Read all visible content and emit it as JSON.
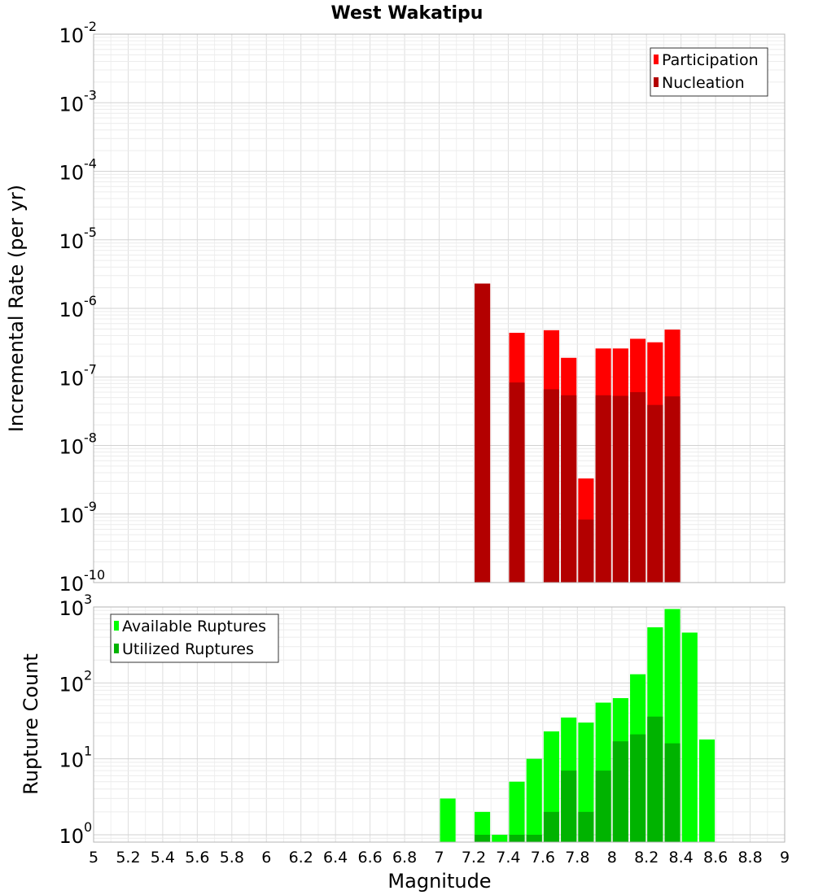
{
  "chart_data": [
    {
      "type": "bar",
      "title": "West Wakatipu",
      "xlabel": "Magnitude",
      "ylabel": "Incremental Rate (per yr)",
      "yscale": "log",
      "ylim": [
        1e-10,
        0.01
      ],
      "xlim": [
        5,
        9
      ],
      "bar_width": 0.09,
      "yticks": [
        {
          "base": "10",
          "exp": "-10"
        },
        {
          "base": "10",
          "exp": "-9"
        },
        {
          "base": "10",
          "exp": "-8"
        },
        {
          "base": "10",
          "exp": "-7"
        },
        {
          "base": "10",
          "exp": "-6"
        },
        {
          "base": "10",
          "exp": "-5"
        },
        {
          "base": "10",
          "exp": "-4"
        },
        {
          "base": "10",
          "exp": "-3"
        },
        {
          "base": "10",
          "exp": "-2"
        }
      ],
      "legend": {
        "position": "top-right"
      },
      "series": [
        {
          "name": "Participation",
          "color": "#ff0000",
          "points": [
            {
              "x": 7.25,
              "y": 2.3e-06
            },
            {
              "x": 7.45,
              "y": 4.4e-07
            },
            {
              "x": 7.65,
              "y": 4.8e-07
            },
            {
              "x": 7.75,
              "y": 1.9e-07
            },
            {
              "x": 7.85,
              "y": 3.3e-09
            },
            {
              "x": 7.95,
              "y": 2.6e-07
            },
            {
              "x": 8.05,
              "y": 2.6e-07
            },
            {
              "x": 8.15,
              "y": 3.6e-07
            },
            {
              "x": 8.25,
              "y": 3.2e-07
            },
            {
              "x": 8.35,
              "y": 4.9e-07
            }
          ]
        },
        {
          "name": "Nucleation",
          "color": "#b30000",
          "points": [
            {
              "x": 7.25,
              "y": 2.3e-06
            },
            {
              "x": 7.45,
              "y": 8.3e-08
            },
            {
              "x": 7.65,
              "y": 6.6e-08
            },
            {
              "x": 7.75,
              "y": 5.4e-08
            },
            {
              "x": 7.85,
              "y": 8.3e-10
            },
            {
              "x": 7.95,
              "y": 5.4e-08
            },
            {
              "x": 8.05,
              "y": 5.3e-08
            },
            {
              "x": 8.15,
              "y": 6e-08
            },
            {
              "x": 8.25,
              "y": 3.9e-08
            },
            {
              "x": 8.35,
              "y": 5.2e-08
            }
          ]
        }
      ]
    },
    {
      "type": "bar",
      "title": "",
      "xlabel": "Magnitude",
      "ylabel": "Rupture Count",
      "yscale": "log",
      "ylim": [
        0.8,
        1000
      ],
      "xlim": [
        5,
        9
      ],
      "bar_width": 0.09,
      "yticks": [
        {
          "base": "10",
          "exp": "0"
        },
        {
          "base": "10",
          "exp": "1"
        },
        {
          "base": "10",
          "exp": "2"
        },
        {
          "base": "10",
          "exp": "3"
        }
      ],
      "xticks": [
        "5",
        "5.2",
        "5.4",
        "5.6",
        "5.8",
        "6",
        "6.2",
        "6.4",
        "6.6",
        "6.8",
        "7",
        "7.2",
        "7.4",
        "7.6",
        "7.8",
        "8",
        "8.2",
        "8.4",
        "8.6",
        "8.8",
        "9"
      ],
      "legend": {
        "position": "top-left"
      },
      "series": [
        {
          "name": "Available Ruptures",
          "color": "#00ff00",
          "points": [
            {
              "x": 7.05,
              "y": 3
            },
            {
              "x": 7.25,
              "y": 2
            },
            {
              "x": 7.35,
              "y": 1
            },
            {
              "x": 7.45,
              "y": 5
            },
            {
              "x": 7.55,
              "y": 10
            },
            {
              "x": 7.65,
              "y": 23
            },
            {
              "x": 7.75,
              "y": 35
            },
            {
              "x": 7.85,
              "y": 30
            },
            {
              "x": 7.95,
              "y": 55
            },
            {
              "x": 8.05,
              "y": 63
            },
            {
              "x": 8.15,
              "y": 130
            },
            {
              "x": 8.25,
              "y": 540
            },
            {
              "x": 8.35,
              "y": 940
            },
            {
              "x": 8.45,
              "y": 460
            },
            {
              "x": 8.55,
              "y": 18
            }
          ]
        },
        {
          "name": "Utilized Ruptures",
          "color": "#00b300",
          "points": [
            {
              "x": 7.25,
              "y": 1
            },
            {
              "x": 7.45,
              "y": 1
            },
            {
              "x": 7.55,
              "y": 1
            },
            {
              "x": 7.65,
              "y": 2
            },
            {
              "x": 7.75,
              "y": 7
            },
            {
              "x": 7.85,
              "y": 2
            },
            {
              "x": 7.95,
              "y": 7
            },
            {
              "x": 8.05,
              "y": 17
            },
            {
              "x": 8.15,
              "y": 21
            },
            {
              "x": 8.25,
              "y": 36
            },
            {
              "x": 8.35,
              "y": 16
            }
          ]
        }
      ]
    }
  ]
}
